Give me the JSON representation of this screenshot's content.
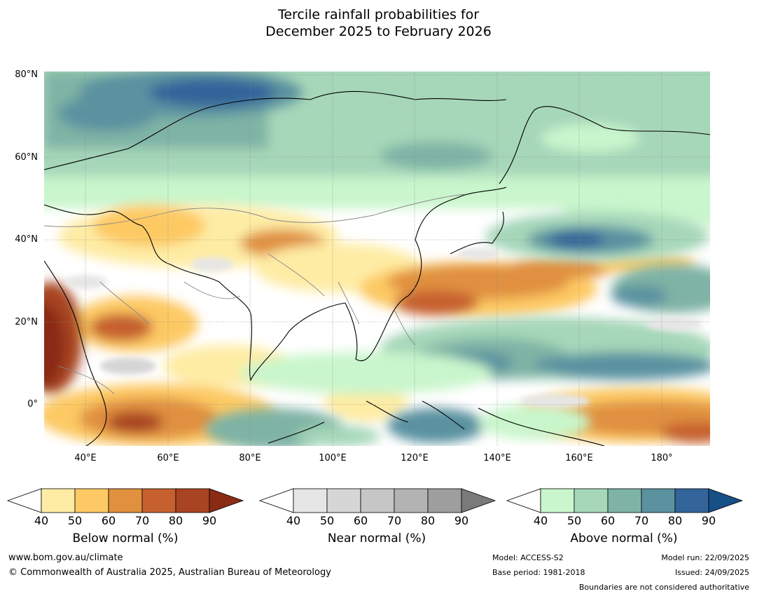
{
  "title": {
    "line1": "Tercile rainfall probabilities for",
    "line2": "December 2025 to February 2026"
  },
  "lat_labels": [
    "80°N",
    "60°N",
    "40°N",
    "20°N",
    "0°"
  ],
  "lon_labels": [
    "40°E",
    "60°E",
    "80°E",
    "100°E",
    "120°E",
    "140°E",
    "160°E",
    "180°"
  ],
  "colorbars": [
    {
      "label": "Below normal (%)",
      "ticks": [
        "40",
        "50",
        "60",
        "70",
        "80",
        "90"
      ],
      "colors": [
        "#ffffff",
        "#feeca4",
        "#fdc964",
        "#e0903f",
        "#c6612f",
        "#a84421",
        "#8a2b16"
      ]
    },
    {
      "label": "Near normal (%)",
      "ticks": [
        "40",
        "50",
        "60",
        "70",
        "80",
        "90"
      ],
      "colors": [
        "#ffffff",
        "#e6e6e6",
        "#d6d6d6",
        "#c6c6c6",
        "#b3b3b3",
        "#9e9e9e",
        "#7a7a7a"
      ]
    },
    {
      "label": "Above normal (%)",
      "ticks": [
        "40",
        "50",
        "60",
        "70",
        "80",
        "90"
      ],
      "colors": [
        "#ffffff",
        "#c9f6cc",
        "#a6d7b9",
        "#7fb3a5",
        "#5a92a0",
        "#33649a",
        "#174f87"
      ]
    }
  ],
  "footer": {
    "website": "www.bom.gov.au/climate",
    "copyright": "© Commonwealth of Australia 2025, Australian Bureau of Meteorology",
    "model": "Model: ACCESS-S2",
    "base_period": "Base period: 1981-2018",
    "model_run": "Model run: 22/09/2025",
    "issued": "Issued: 24/09/2025",
    "disclaimer": "Boundaries are not considered authoritative"
  }
}
